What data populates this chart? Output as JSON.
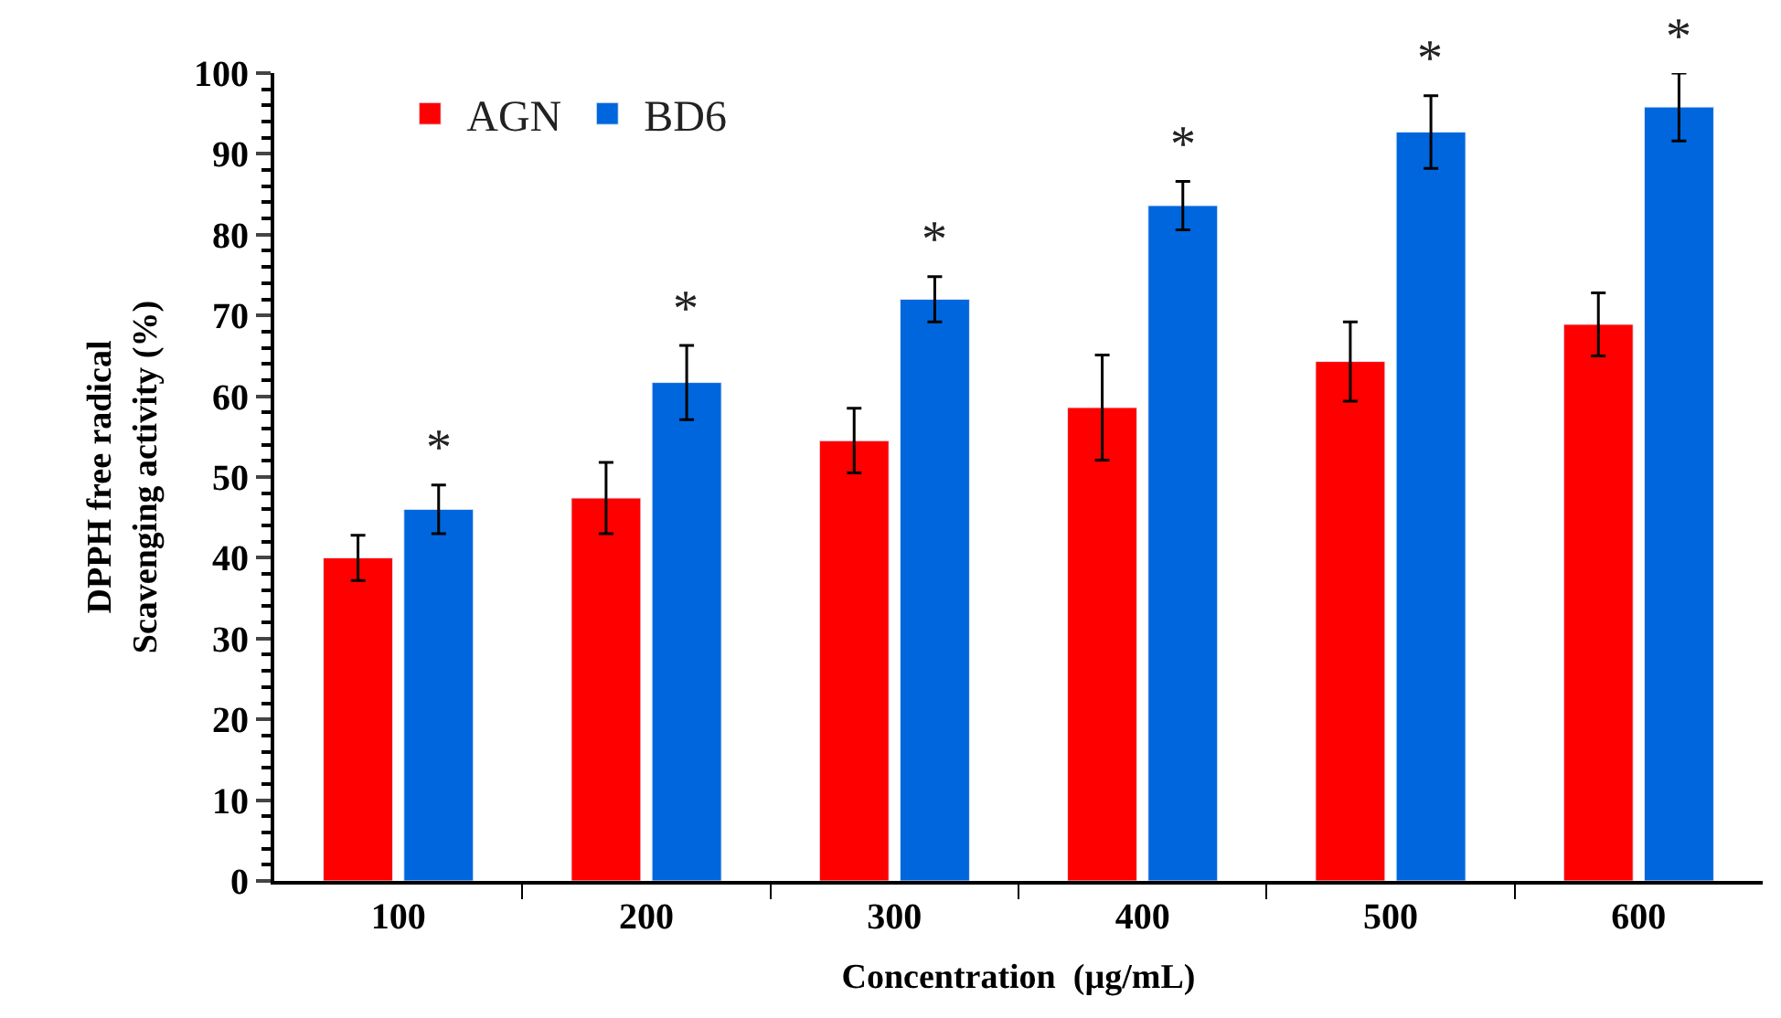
{
  "chart_data": {
    "type": "bar",
    "xlabel": "Concentration  (µg/mL)",
    "ylabel": "DPPH free radical\nScavenging activity (%)",
    "categories": [
      "100",
      "200",
      "300",
      "400",
      "500",
      "600"
    ],
    "series": [
      {
        "name": "AGN",
        "color": "#ff0000",
        "values": [
          40,
          47.4,
          54.5,
          58.6,
          64.3,
          68.9
        ],
        "errors": [
          2.8,
          4.4,
          4,
          6.5,
          4.9,
          3.9
        ]
      },
      {
        "name": "BD6",
        "color": "#0066dd",
        "values": [
          46,
          61.7,
          72,
          83.6,
          92.7,
          95.8
        ],
        "errors": [
          3,
          4.6,
          2.8,
          3,
          4.5,
          4.2
        ]
      }
    ],
    "annotations": [
      {
        "text": "*",
        "x": "100",
        "y": 46
      },
      {
        "text": "*",
        "x": "200",
        "y": 61.7
      },
      {
        "text": "*",
        "x": "300",
        "y": 72
      },
      {
        "text": "*",
        "x": "400",
        "y": 83.6
      },
      {
        "text": "*",
        "x": "500",
        "y": 92.7
      },
      {
        "text": "*",
        "x": "600",
        "y": 95.8
      }
    ],
    "ylim": [
      0,
      100
    ],
    "yticks": [
      0,
      10,
      20,
      30,
      40,
      50,
      60,
      70,
      80,
      90,
      100
    ],
    "legend": "top left"
  }
}
